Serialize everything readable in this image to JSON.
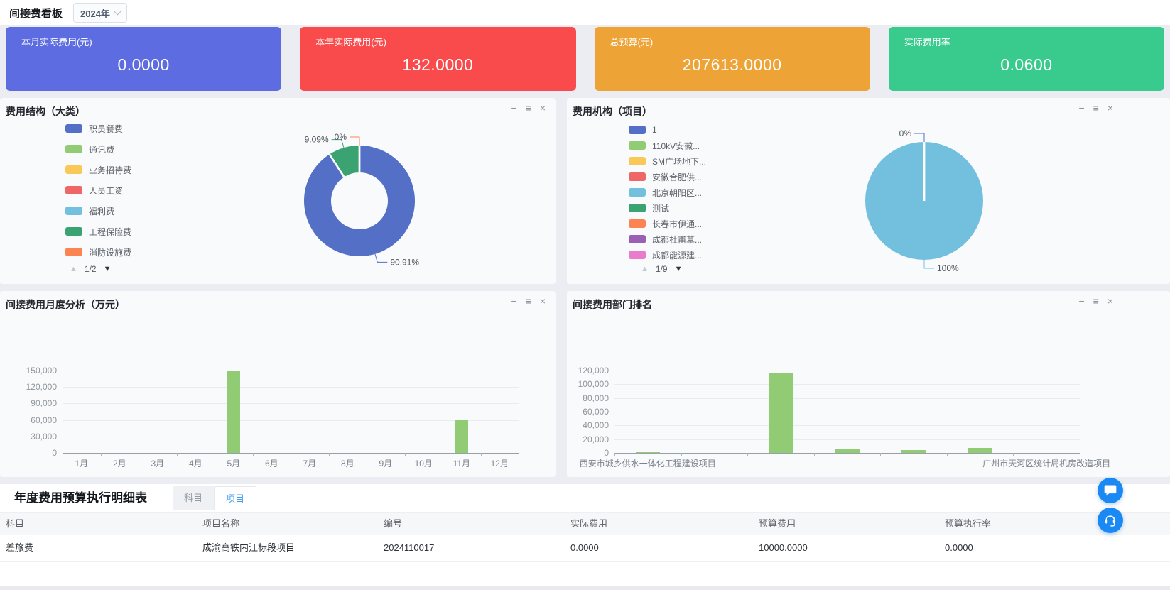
{
  "topbar": {
    "title": "间接费看板",
    "year_select": "2024年"
  },
  "kpi_cards": [
    {
      "label": "本月实际费用(元)",
      "value": "0.0000",
      "bg": "#5d6ce0"
    },
    {
      "label": "本年实际费用(元)",
      "value": "132.0000",
      "bg": "#f94b4b"
    },
    {
      "label": "总预算(元)",
      "value": "207613.0000",
      "bg": "#eda336"
    },
    {
      "label": "实际费用率",
      "value": "0.0600",
      "bg": "#39ca8d"
    }
  ],
  "panel_controls": {
    "minimize": "−",
    "menu": "≡",
    "close": "×"
  },
  "pager": {
    "up": "▲",
    "down": "▼"
  },
  "chart_data": [
    {
      "id": "expense-structure-donut",
      "type": "pie",
      "title": "费用结构（大类）",
      "legend_page": "1/2",
      "legend": [
        {
          "label": "职员餐费",
          "color": "#5470c6"
        },
        {
          "label": "通讯费",
          "color": "#91cc75"
        },
        {
          "label": "业务招待费",
          "color": "#fac858"
        },
        {
          "label": "人员工资",
          "color": "#ee6666"
        },
        {
          "label": "福利费",
          "color": "#73c0de"
        },
        {
          "label": "工程保险费",
          "color": "#3ba272"
        },
        {
          "label": "消防设施费",
          "color": "#fc8452"
        }
      ],
      "slices": [
        {
          "label": "职员餐费",
          "value": 90.91,
          "color": "#5470c6",
          "show_label": true
        },
        {
          "label": "通讯费",
          "value": 0,
          "color": "#91cc75",
          "show_label": false
        },
        {
          "label": "业务招待费",
          "value": 0,
          "color": "#fac858",
          "show_label": false
        },
        {
          "label": "人员工资",
          "value": 0,
          "color": "#ee6666",
          "show_label": false
        },
        {
          "label": "福利费",
          "value": 0,
          "color": "#73c0de",
          "show_label": false
        },
        {
          "label": "工程保险费",
          "value": 9.09,
          "color": "#3ba272",
          "show_label": true
        },
        {
          "label": "消防设施费",
          "value": 0,
          "color": "#fc8452",
          "show_label": true
        }
      ],
      "donut": true
    },
    {
      "id": "expense-org-pie",
      "type": "pie",
      "title": "费用机构（项目）",
      "legend_page": "1/9",
      "legend": [
        {
          "label": "1",
          "color": "#5470c6"
        },
        {
          "label": "110kV安徽...",
          "color": "#91cc75"
        },
        {
          "label": "SM广场地下...",
          "color": "#fac858"
        },
        {
          "label": "安徽合肥供...",
          "color": "#ee6666"
        },
        {
          "label": "北京朝阳区...",
          "color": "#73c0de"
        },
        {
          "label": "测试",
          "color": "#3ba272"
        },
        {
          "label": "长春市伊通...",
          "color": "#fc8452"
        },
        {
          "label": "成都杜甫草...",
          "color": "#9a60b4"
        },
        {
          "label": "成都能源建...",
          "color": "#ea7ccc"
        }
      ],
      "slices": [
        {
          "label": "1",
          "value": 0,
          "color": "#5470c6",
          "show_label": true
        },
        {
          "label": "110kV安徽...",
          "value": 0,
          "color": "#91cc75",
          "show_label": false
        },
        {
          "label": "SM广场地下...",
          "value": 0,
          "color": "#fac858",
          "show_label": false
        },
        {
          "label": "安徽合肥供...",
          "value": 0,
          "color": "#ee6666",
          "show_label": false
        },
        {
          "label": "北京朝阳区...",
          "value": 100,
          "color": "#73c0de",
          "show_label": true
        },
        {
          "label": "测试",
          "value": 0,
          "color": "#3ba272",
          "show_label": false
        },
        {
          "label": "长春市伊通...",
          "value": 0,
          "color": "#fc8452",
          "show_label": false
        },
        {
          "label": "成都杜甫草...",
          "value": 0,
          "color": "#9a60b4",
          "show_label": false
        },
        {
          "label": "成都能源建...",
          "value": 0,
          "color": "#ea7ccc",
          "show_label": false
        }
      ],
      "donut": false
    },
    {
      "id": "monthly-expense-bar",
      "type": "bar",
      "title": "间接费用月度分析（万元）",
      "categories": [
        "1月",
        "2月",
        "3月",
        "4月",
        "5月",
        "6月",
        "7月",
        "8月",
        "9月",
        "10月",
        "11月",
        "12月"
      ],
      "values": [
        0,
        0,
        0,
        0,
        149800,
        0,
        0,
        0,
        0,
        0,
        59000,
        0
      ],
      "ylim": [
        0,
        150000
      ],
      "ystep": 30000,
      "bar_color": "#91cc75",
      "grid": true,
      "legend_position": "none"
    },
    {
      "id": "department-ranking-bar",
      "type": "bar",
      "title": "间接费用部门排名",
      "categories": [
        "西安市城乡供水一体化工程建设项目",
        "",
        "",
        "",
        "",
        "",
        "广州市天河区统计局机房改造项目"
      ],
      "values": [
        400,
        0,
        117000,
        6500,
        4700,
        6800,
        0
      ],
      "ylim": [
        0,
        120000
      ],
      "ystep": 20000,
      "bar_color": "#91cc75",
      "grid": true,
      "legend_position": "none"
    }
  ],
  "table": {
    "title": "年度费用预算执行明细表",
    "tabs": [
      {
        "label": "科目",
        "active": false
      },
      {
        "label": "项目",
        "active": true
      }
    ],
    "columns": [
      "科目",
      "项目名称",
      "编号",
      "实际费用",
      "预算费用",
      "预算执行率"
    ],
    "rows": [
      [
        "差旅费",
        "成渝高铁内江标段项目",
        "2024110017",
        "0.0000",
        "10000.0000",
        "0.0000"
      ]
    ]
  },
  "float_buttons": [
    {
      "icon": "chat-icon"
    },
    {
      "icon": "customer-service-icon"
    }
  ]
}
